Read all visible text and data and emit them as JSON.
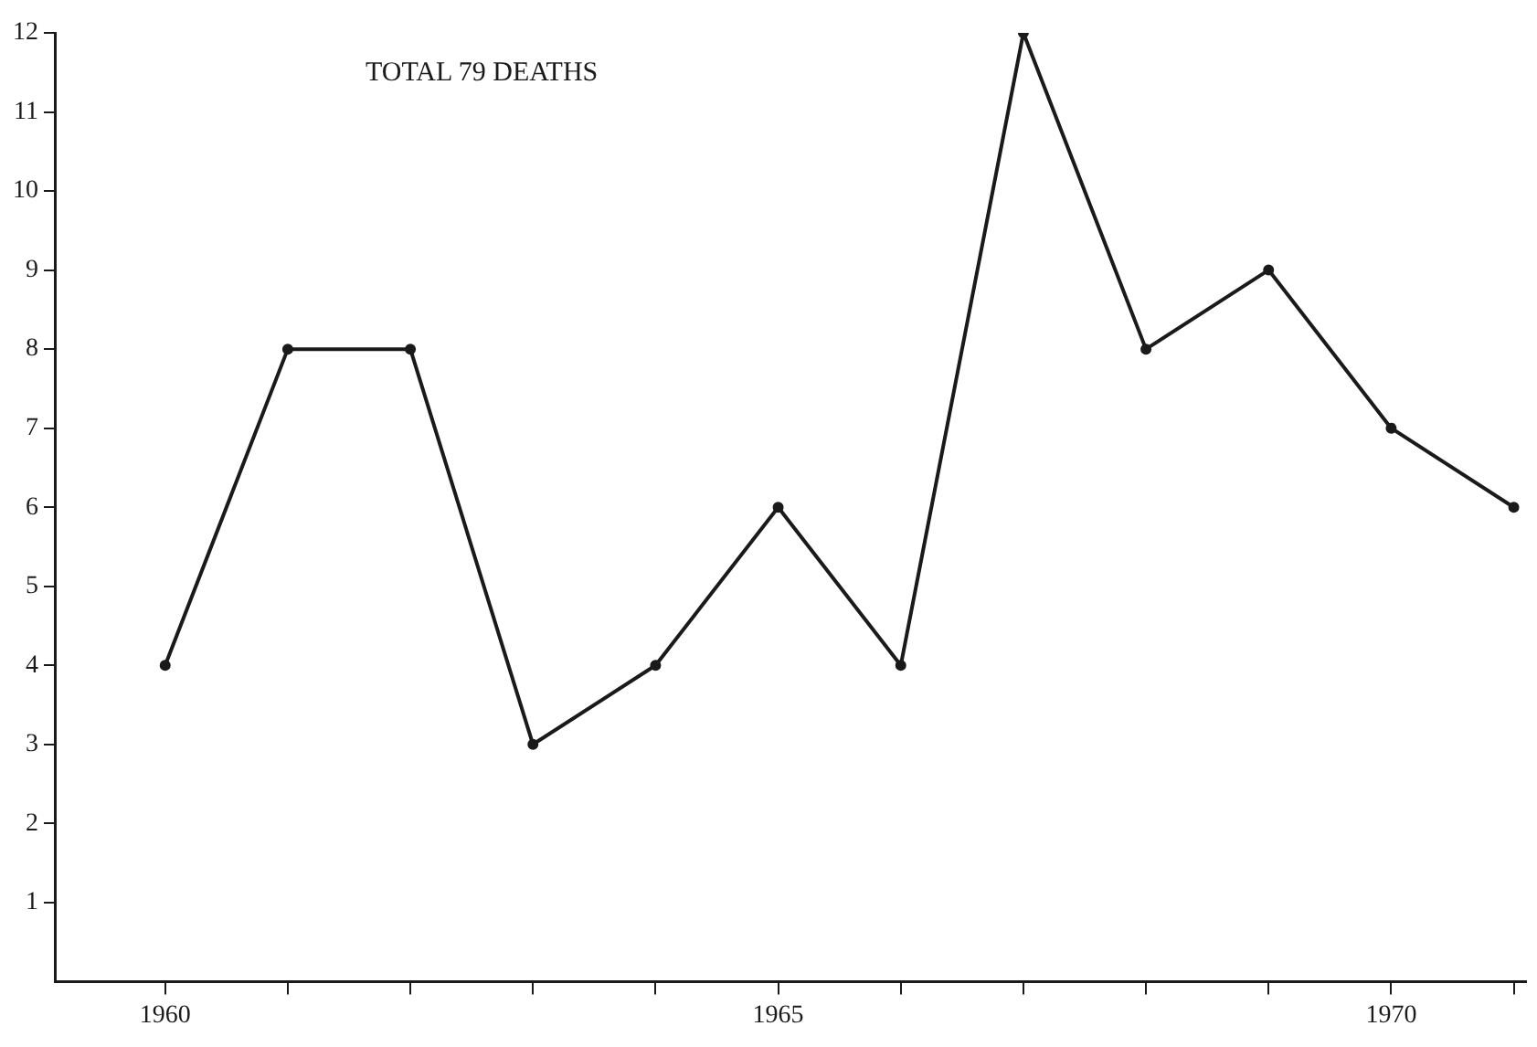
{
  "chart_data": {
    "type": "line",
    "annotations": [
      "TOTAL 79 DEATHS"
    ],
    "x": [
      1960,
      1961,
      1962,
      1963,
      1964,
      1965,
      1966,
      1967,
      1968,
      1969,
      1970,
      1971
    ],
    "series": [
      {
        "color": "#1a1a1a",
        "values": [
          4,
          8,
          8,
          3,
          4,
          6,
          4,
          12,
          8,
          9,
          7,
          6
        ]
      }
    ],
    "xlim": [
      1959.1,
      1971.1
    ],
    "xticks": [
      1960,
      {
        "value": 1961,
        "label": null
      },
      {
        "value": 1962,
        "label": null
      },
      {
        "value": 1963,
        "label": null
      },
      {
        "value": 1964,
        "label": null
      },
      1965,
      {
        "value": 1966,
        "label": null
      },
      {
        "value": 1967,
        "label": null
      },
      {
        "value": 1968,
        "label": null
      },
      {
        "value": 1969,
        "label": null
      },
      1970,
      {
        "value": 1971,
        "label": null
      }
    ],
    "ylim": [
      0,
      12
    ],
    "yticks": [
      1,
      2,
      3,
      4,
      5,
      6,
      7,
      8,
      9,
      10,
      11,
      12
    ],
    "grid": false,
    "legend": false,
    "marker": "circle",
    "line_style": "solid"
  }
}
